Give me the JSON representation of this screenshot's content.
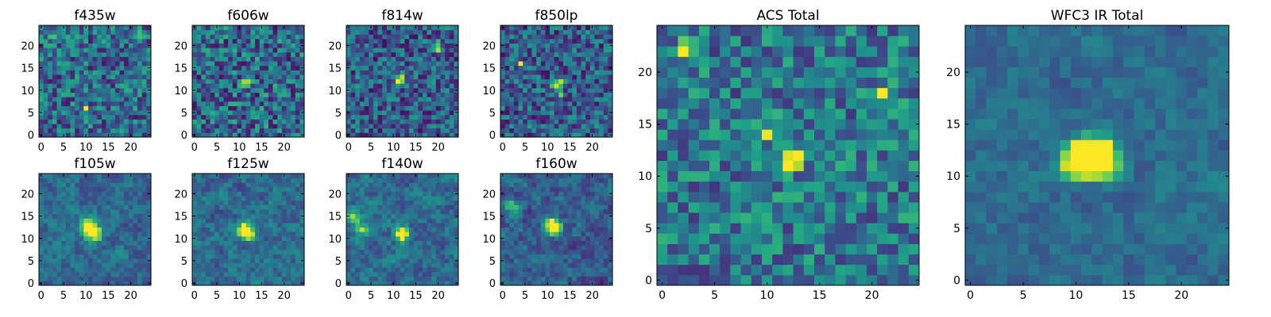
{
  "figure": {
    "background": "#ffffff"
  },
  "chart_data": [
    {
      "type": "heatmap",
      "title": "f435w",
      "grid": false,
      "xlim": [
        0,
        25
      ],
      "ylim": [
        0,
        25
      ],
      "xticks": [
        0,
        5,
        10,
        15,
        20
      ],
      "yticks": [
        0,
        5,
        10,
        15,
        20
      ],
      "colormap": "viridis",
      "size": [
        25,
        25
      ],
      "hotspots": [
        [
          10,
          6,
          0.7
        ],
        [
          2,
          22,
          0.55
        ],
        [
          22,
          23,
          0.5
        ]
      ],
      "noise": 0.28,
      "smooth": 0,
      "base": 0.35,
      "seed": 11
    },
    {
      "type": "heatmap",
      "title": "f606w",
      "grid": false,
      "xlim": [
        0,
        25
      ],
      "ylim": [
        0,
        25
      ],
      "xticks": [
        0,
        5,
        10,
        15,
        20
      ],
      "yticks": [
        0,
        5,
        10,
        15,
        20
      ],
      "colormap": "viridis",
      "size": [
        25,
        25
      ],
      "hotspots": [
        [
          12,
          12,
          0.7
        ],
        [
          11,
          11,
          0.6
        ]
      ],
      "noise": 0.3,
      "smooth": 0,
      "base": 0.35,
      "seed": 23
    },
    {
      "type": "heatmap",
      "title": "f814w",
      "grid": false,
      "xlim": [
        0,
        25
      ],
      "ylim": [
        0,
        25
      ],
      "xticks": [
        0,
        5,
        10,
        15,
        20
      ],
      "yticks": [
        0,
        5,
        10,
        15,
        20
      ],
      "colormap": "viridis",
      "size": [
        25,
        25
      ],
      "hotspots": [
        [
          11,
          12,
          0.8
        ],
        [
          12,
          13,
          0.6
        ],
        [
          20,
          20,
          0.6
        ],
        [
          20,
          19,
          0.5
        ]
      ],
      "noise": 0.26,
      "smooth": 0,
      "base": 0.3,
      "seed": 37
    },
    {
      "type": "heatmap",
      "title": "f850lp",
      "grid": false,
      "xlim": [
        0,
        25
      ],
      "ylim": [
        0,
        25
      ],
      "xticks": [
        0,
        5,
        10,
        15,
        20
      ],
      "yticks": [
        0,
        5,
        10,
        15,
        20
      ],
      "colormap": "viridis",
      "size": [
        25,
        25
      ],
      "hotspots": [
        [
          12,
          11,
          0.75
        ],
        [
          13,
          12,
          0.6
        ],
        [
          4,
          16,
          0.6
        ],
        [
          13,
          9,
          0.55
        ]
      ],
      "noise": 0.26,
      "smooth": 0,
      "base": 0.3,
      "seed": 41
    },
    {
      "type": "heatmap",
      "title": "f105w",
      "grid": false,
      "xlim": [
        0,
        25
      ],
      "ylim": [
        0,
        25
      ],
      "xticks": [
        0,
        5,
        10,
        15,
        20
      ],
      "yticks": [
        0,
        5,
        10,
        15,
        20
      ],
      "colormap": "viridis",
      "size": [
        25,
        25
      ],
      "hotspots": [
        [
          11,
          12,
          0.85
        ],
        [
          12,
          11,
          0.7
        ],
        [
          10,
          13,
          0.5
        ]
      ],
      "noise": 0.22,
      "smooth": 1,
      "base": 0.35,
      "seed": 53
    },
    {
      "type": "heatmap",
      "title": "f125w",
      "grid": false,
      "xlim": [
        0,
        25
      ],
      "ylim": [
        0,
        25
      ],
      "xticks": [
        0,
        5,
        10,
        15,
        20
      ],
      "yticks": [
        0,
        5,
        10,
        15,
        20
      ],
      "colormap": "viridis",
      "size": [
        25,
        25
      ],
      "hotspots": [
        [
          11,
          12,
          0.8
        ],
        [
          12,
          11,
          0.7
        ]
      ],
      "noise": 0.24,
      "smooth": 1,
      "base": 0.35,
      "seed": 61
    },
    {
      "type": "heatmap",
      "title": "f140w",
      "grid": false,
      "xlim": [
        0,
        25
      ],
      "ylim": [
        0,
        25
      ],
      "xticks": [
        0,
        5,
        10,
        15,
        20
      ],
      "yticks": [
        0,
        5,
        10,
        15,
        20
      ],
      "colormap": "viridis",
      "size": [
        25,
        25
      ],
      "hotspots": [
        [
          12,
          11,
          0.85
        ],
        [
          1,
          15,
          0.55
        ],
        [
          3,
          12,
          0.45
        ]
      ],
      "noise": 0.24,
      "smooth": 1,
      "base": 0.35,
      "seed": 71
    },
    {
      "type": "heatmap",
      "title": "f160w",
      "grid": false,
      "xlim": [
        0,
        25
      ],
      "ylim": [
        0,
        25
      ],
      "xticks": [
        0,
        5,
        10,
        15,
        20
      ],
      "yticks": [
        0,
        5,
        10,
        15,
        20
      ],
      "colormap": "viridis",
      "size": [
        25,
        25
      ],
      "hotspots": [
        [
          11,
          13,
          0.85
        ],
        [
          12,
          12,
          0.7
        ],
        [
          2,
          17,
          0.45
        ]
      ],
      "noise": 0.24,
      "smooth": 1,
      "base": 0.3,
      "seed": 83
    },
    {
      "type": "heatmap",
      "title": "ACS Total",
      "grid": false,
      "xlim": [
        0,
        25
      ],
      "ylim": [
        0,
        25
      ],
      "xticks": [
        0,
        5,
        10,
        15,
        20
      ],
      "yticks": [
        0,
        5,
        10,
        15,
        20
      ],
      "colormap": "viridis",
      "size": [
        25,
        25
      ],
      "hotspots": [
        [
          12,
          11,
          0.95
        ],
        [
          13,
          12,
          0.85
        ],
        [
          2,
          22,
          0.7
        ],
        [
          21,
          18,
          0.6
        ],
        [
          10,
          14,
          0.5
        ]
      ],
      "noise": 0.25,
      "smooth": 0,
      "base": 0.4,
      "seed": 97
    },
    {
      "type": "heatmap",
      "title": "WFC3 IR Total",
      "grid": false,
      "xlim": [
        0,
        25
      ],
      "ylim": [
        0,
        25
      ],
      "xticks": [
        0,
        5,
        10,
        15,
        20
      ],
      "yticks": [
        0,
        5,
        10,
        15,
        20
      ],
      "colormap": "viridis",
      "size": [
        25,
        25
      ],
      "hotspots": [
        [
          11,
          12,
          1.0
        ],
        [
          12,
          12,
          0.95
        ],
        [
          10,
          11,
          0.7
        ],
        [
          13,
          11,
          0.6
        ]
      ],
      "noise": 0.16,
      "smooth": 1,
      "base": 0.35,
      "seed": 109
    }
  ]
}
